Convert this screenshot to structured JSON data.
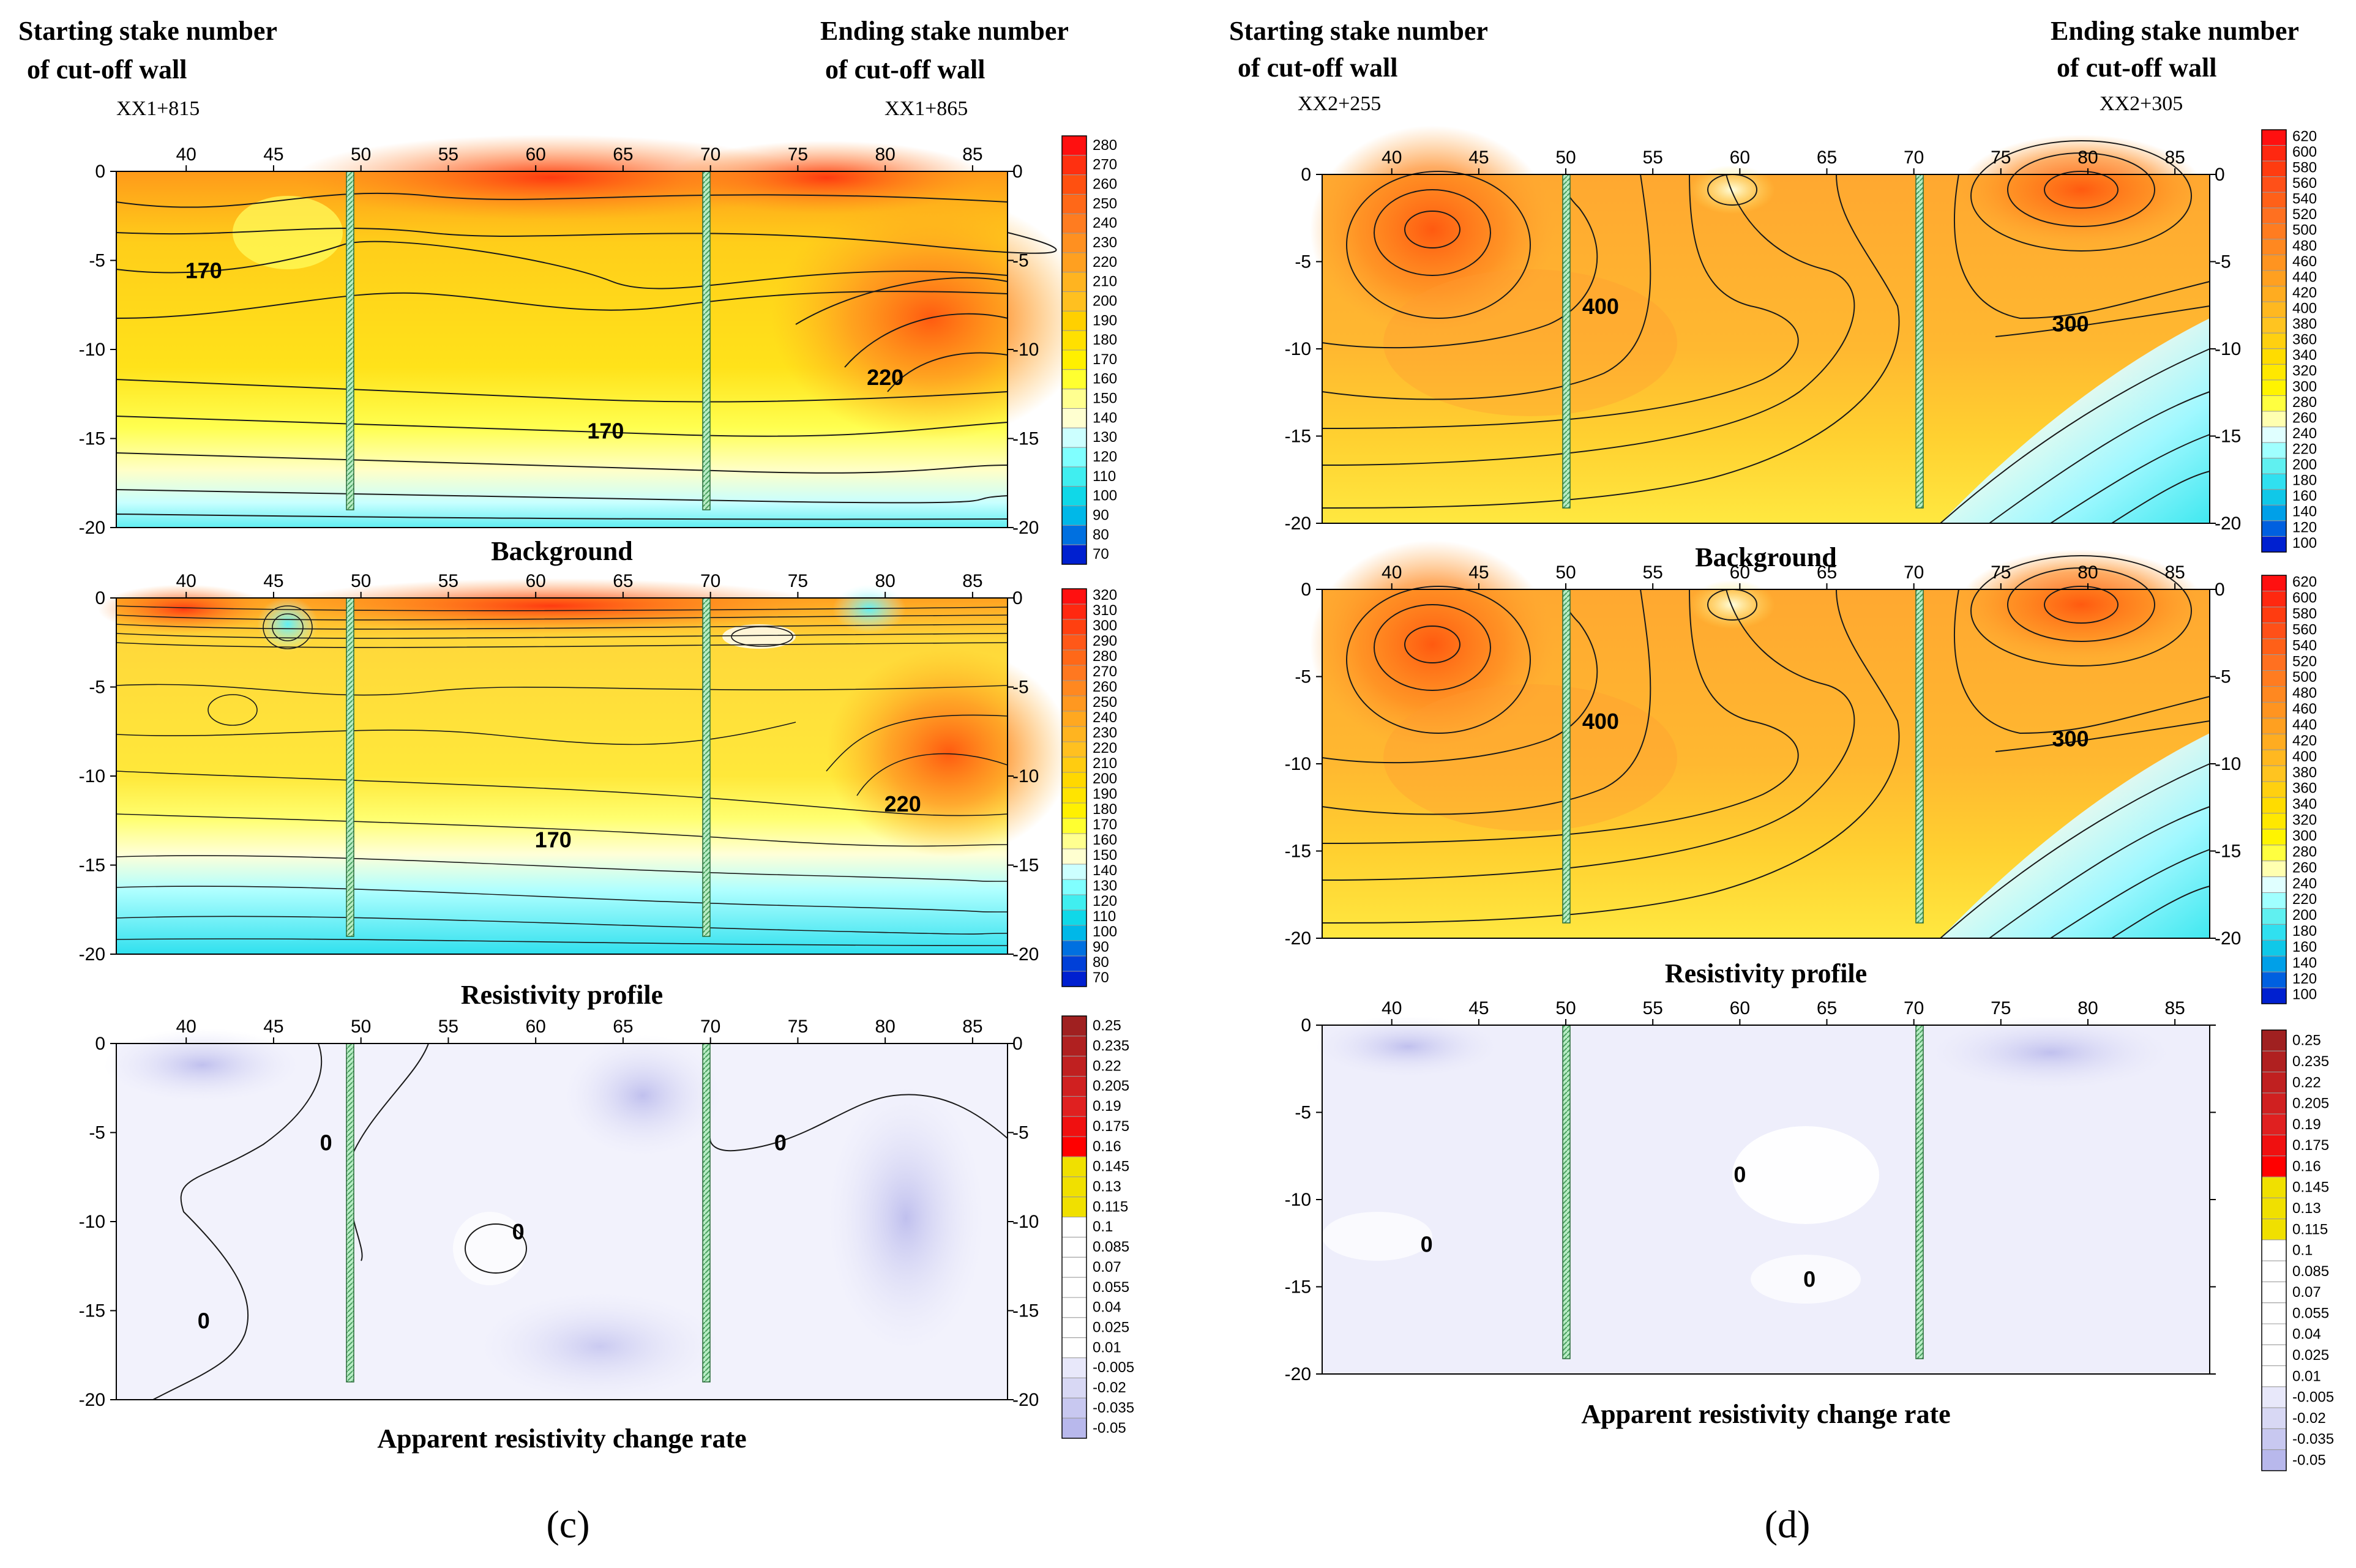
{
  "figure": {
    "panels": [
      {
        "label": "(c)",
        "start_header": [
          "Starting stake number",
          "of cut-off wall"
        ],
        "end_header": [
          "Ending stake number",
          "of cut-off wall"
        ],
        "start_stake": "XX1+815",
        "end_stake": "XX1+865"
      },
      {
        "label": "(d)",
        "start_header": [
          "Starting stake number",
          "of cut-off wall"
        ],
        "end_header": [
          "Ending stake number",
          "of cut-off wall"
        ],
        "start_stake": "XX2+255",
        "end_stake": "XX2+305"
      }
    ]
  },
  "chart_data": [
    {
      "panel": "c",
      "type": "heatmap",
      "title": "Background",
      "x_ticks": [
        40,
        45,
        50,
        55,
        60,
        65,
        70,
        75,
        80,
        85
      ],
      "y_ticks": [
        0,
        -5,
        -10,
        -15,
        -20
      ],
      "xlim": [
        36,
        87
      ],
      "ylim": [
        -20,
        0
      ],
      "wall_positions": [
        50,
        70
      ],
      "wall_bottom": -19,
      "colorbar": {
        "ticks": [
          280,
          270,
          260,
          250,
          240,
          230,
          220,
          210,
          200,
          190,
          180,
          170,
          160,
          150,
          140,
          130,
          120,
          110,
          100,
          90,
          80,
          70
        ],
        "colors": [
          "#ff1010",
          "#ff3010",
          "#ff5010",
          "#ff6818",
          "#ff7c20",
          "#ff9020",
          "#ffa020",
          "#ffb420",
          "#ffc020",
          "#ffd000",
          "#ffe000",
          "#fff000",
          "#ffff30",
          "#ffff90",
          "#ffffd0",
          "#ccffff",
          "#80ffff",
          "#40eef0",
          "#10d8e8",
          "#00b8e8",
          "#0070e0",
          "#0020d0"
        ]
      },
      "contour_labels": [
        {
          "value": "170",
          "x": 41,
          "y": -6
        },
        {
          "value": "220",
          "x": 80,
          "y": -12
        },
        {
          "value": "170",
          "x": 64,
          "y": -15
        }
      ]
    },
    {
      "panel": "c",
      "type": "heatmap",
      "title": "Resistivity profile",
      "x_ticks": [
        40,
        45,
        50,
        55,
        60,
        65,
        70,
        75,
        80,
        85
      ],
      "y_ticks": [
        0,
        -5,
        -10,
        -15,
        -20
      ],
      "xlim": [
        36,
        87
      ],
      "ylim": [
        -20,
        0
      ],
      "wall_positions": [
        50,
        70
      ],
      "wall_bottom": -19,
      "colorbar": {
        "ticks": [
          320,
          310,
          300,
          290,
          280,
          270,
          260,
          250,
          240,
          230,
          220,
          210,
          200,
          190,
          180,
          170,
          160,
          150,
          140,
          130,
          120,
          110,
          100,
          90,
          80,
          70
        ],
        "colors": [
          "#ff1010",
          "#ff2810",
          "#ff4010",
          "#ff5818",
          "#ff6818",
          "#ff7820",
          "#ff8820",
          "#ff9820",
          "#ffa820",
          "#ffb420",
          "#ffc020",
          "#ffcc10",
          "#ffd800",
          "#ffe400",
          "#fff000",
          "#ffff30",
          "#ffff90",
          "#ffffd0",
          "#ccffff",
          "#80ffff",
          "#40eef0",
          "#10d8e8",
          "#00b8e8",
          "#0070e0",
          "#0040d8",
          "#0020d0"
        ]
      },
      "contour_labels": [
        {
          "value": "220",
          "x": 81,
          "y": -12
        },
        {
          "value": "170",
          "x": 61,
          "y": -14
        }
      ]
    },
    {
      "panel": "c",
      "type": "heatmap",
      "title": "Apparent resistivity change rate",
      "x_ticks": [
        40,
        45,
        50,
        55,
        60,
        65,
        70,
        75,
        80,
        85
      ],
      "y_ticks": [
        0,
        -5,
        -10,
        -15,
        -20
      ],
      "xlim": [
        36,
        87
      ],
      "ylim": [
        -20,
        0
      ],
      "wall_positions": [
        50,
        70
      ],
      "wall_bottom": -19,
      "colorbar": {
        "ticks": [
          "0.25",
          "0.235",
          "0.22",
          "0.205",
          "0.19",
          "0.175",
          "0.16",
          "0.145",
          "0.13",
          "0.115",
          "0.1",
          "0.085",
          "0.07",
          "0.055",
          "0.04",
          "0.025",
          "0.01",
          "-0.005",
          "-0.02",
          "-0.035",
          "-0.05"
        ],
        "colors": [
          "#a02020",
          "#b02020",
          "#c02020",
          "#d02020",
          "#e02020",
          "#f01010",
          "#ff0000",
          "#f0e000",
          "#f0e000",
          "#f0e000",
          "#ffffff",
          "#ffffff",
          "#ffffff",
          "#ffffff",
          "#ffffff",
          "#ffffff",
          "#ffffff",
          "#e8e8fa",
          "#d8d8f4",
          "#c8c8f0",
          "#b8b8ec"
        ]
      },
      "contour_labels": [
        {
          "value": "0",
          "x": 48,
          "y": -6
        },
        {
          "value": "0",
          "x": 74,
          "y": -6
        },
        {
          "value": "0",
          "x": 59,
          "y": -11
        },
        {
          "value": "0",
          "x": 41,
          "y": -16
        }
      ]
    },
    {
      "panel": "d",
      "type": "heatmap",
      "title": "Background",
      "x_ticks": [
        40,
        45,
        50,
        55,
        60,
        65,
        70,
        75,
        80,
        85
      ],
      "y_ticks": [
        0,
        -5,
        -10,
        -15,
        -20
      ],
      "xlim": [
        36,
        87
      ],
      "ylim": [
        -20,
        0
      ],
      "wall_positions": [
        50,
        70
      ],
      "wall_bottom": -19,
      "colorbar": {
        "ticks": [
          620,
          600,
          580,
          560,
          540,
          520,
          500,
          480,
          460,
          440,
          420,
          400,
          380,
          360,
          340,
          320,
          300,
          280,
          260,
          240,
          220,
          200,
          180,
          160,
          140,
          120,
          100
        ],
        "colors": [
          "#ff1010",
          "#ff2810",
          "#ff3c10",
          "#ff5018",
          "#ff6018",
          "#ff7020",
          "#ff7c20",
          "#ff8820",
          "#ff9420",
          "#ffa020",
          "#ffac20",
          "#ffb820",
          "#ffc420",
          "#ffd010",
          "#ffdc00",
          "#ffe800",
          "#fff400",
          "#ffff40",
          "#ffffb0",
          "#e0ffff",
          "#a0ffff",
          "#60f0f0",
          "#30e0f0",
          "#10c8e8",
          "#00a0e8",
          "#0060e0",
          "#0020d0"
        ]
      },
      "contour_labels": [
        {
          "value": "400",
          "x": 52,
          "y": -8
        },
        {
          "value": "300",
          "x": 79,
          "y": -9
        }
      ]
    },
    {
      "panel": "d",
      "type": "heatmap",
      "title": "Resistivity profile",
      "x_ticks": [
        40,
        45,
        50,
        55,
        60,
        65,
        70,
        75,
        80,
        85
      ],
      "y_ticks": [
        0,
        -5,
        -10,
        -15,
        -20
      ],
      "xlim": [
        36,
        87
      ],
      "ylim": [
        -20,
        0
      ],
      "wall_positions": [
        50,
        70
      ],
      "wall_bottom": -19,
      "colorbar": {
        "ticks": [
          620,
          600,
          580,
          560,
          540,
          520,
          500,
          480,
          460,
          440,
          420,
          400,
          380,
          360,
          340,
          320,
          300,
          280,
          260,
          240,
          220,
          200,
          180,
          160,
          140,
          120,
          100
        ],
        "colors": [
          "#ff1010",
          "#ff2810",
          "#ff3c10",
          "#ff5018",
          "#ff6018",
          "#ff7020",
          "#ff7c20",
          "#ff8820",
          "#ff9420",
          "#ffa020",
          "#ffac20",
          "#ffb820",
          "#ffc420",
          "#ffd010",
          "#ffdc00",
          "#ffe800",
          "#fff400",
          "#ffff40",
          "#ffffb0",
          "#e0ffff",
          "#a0ffff",
          "#60f0f0",
          "#30e0f0",
          "#10c8e8",
          "#00a0e8",
          "#0060e0",
          "#0020d0"
        ]
      },
      "contour_labels": [
        {
          "value": "400",
          "x": 52,
          "y": -8
        },
        {
          "value": "300",
          "x": 79,
          "y": -9
        }
      ]
    },
    {
      "panel": "d",
      "type": "heatmap",
      "title": "Apparent resistivity change rate",
      "x_ticks": [
        40,
        45,
        50,
        55,
        60,
        65,
        70,
        75,
        80,
        85
      ],
      "y_ticks": [
        0,
        -5,
        -10,
        -15,
        -20
      ],
      "xlim": [
        36,
        87
      ],
      "ylim": [
        -20,
        0
      ],
      "wall_positions": [
        50,
        70
      ],
      "wall_bottom": -19,
      "colorbar": {
        "ticks": [
          "0.25",
          "0.235",
          "0.22",
          "0.205",
          "0.19",
          "0.175",
          "0.16",
          "0.145",
          "0.13",
          "0.115",
          "0.1",
          "0.085",
          "0.07",
          "0.055",
          "0.04",
          "0.025",
          "0.01",
          "-0.005",
          "-0.02",
          "-0.035",
          "-0.05"
        ],
        "colors": [
          "#a02020",
          "#b02020",
          "#c02020",
          "#d02020",
          "#e02020",
          "#f01010",
          "#ff0000",
          "#f0e000",
          "#f0e000",
          "#f0e000",
          "#ffffff",
          "#ffffff",
          "#ffffff",
          "#ffffff",
          "#ffffff",
          "#ffffff",
          "#ffffff",
          "#e8e8fa",
          "#d8d8f4",
          "#c8c8f0",
          "#b8b8ec"
        ]
      },
      "contour_labels": [
        {
          "value": "0",
          "x": 60,
          "y": -9
        },
        {
          "value": "0",
          "x": 42,
          "y": -13
        },
        {
          "value": "0",
          "x": 64,
          "y": -15
        }
      ]
    }
  ]
}
